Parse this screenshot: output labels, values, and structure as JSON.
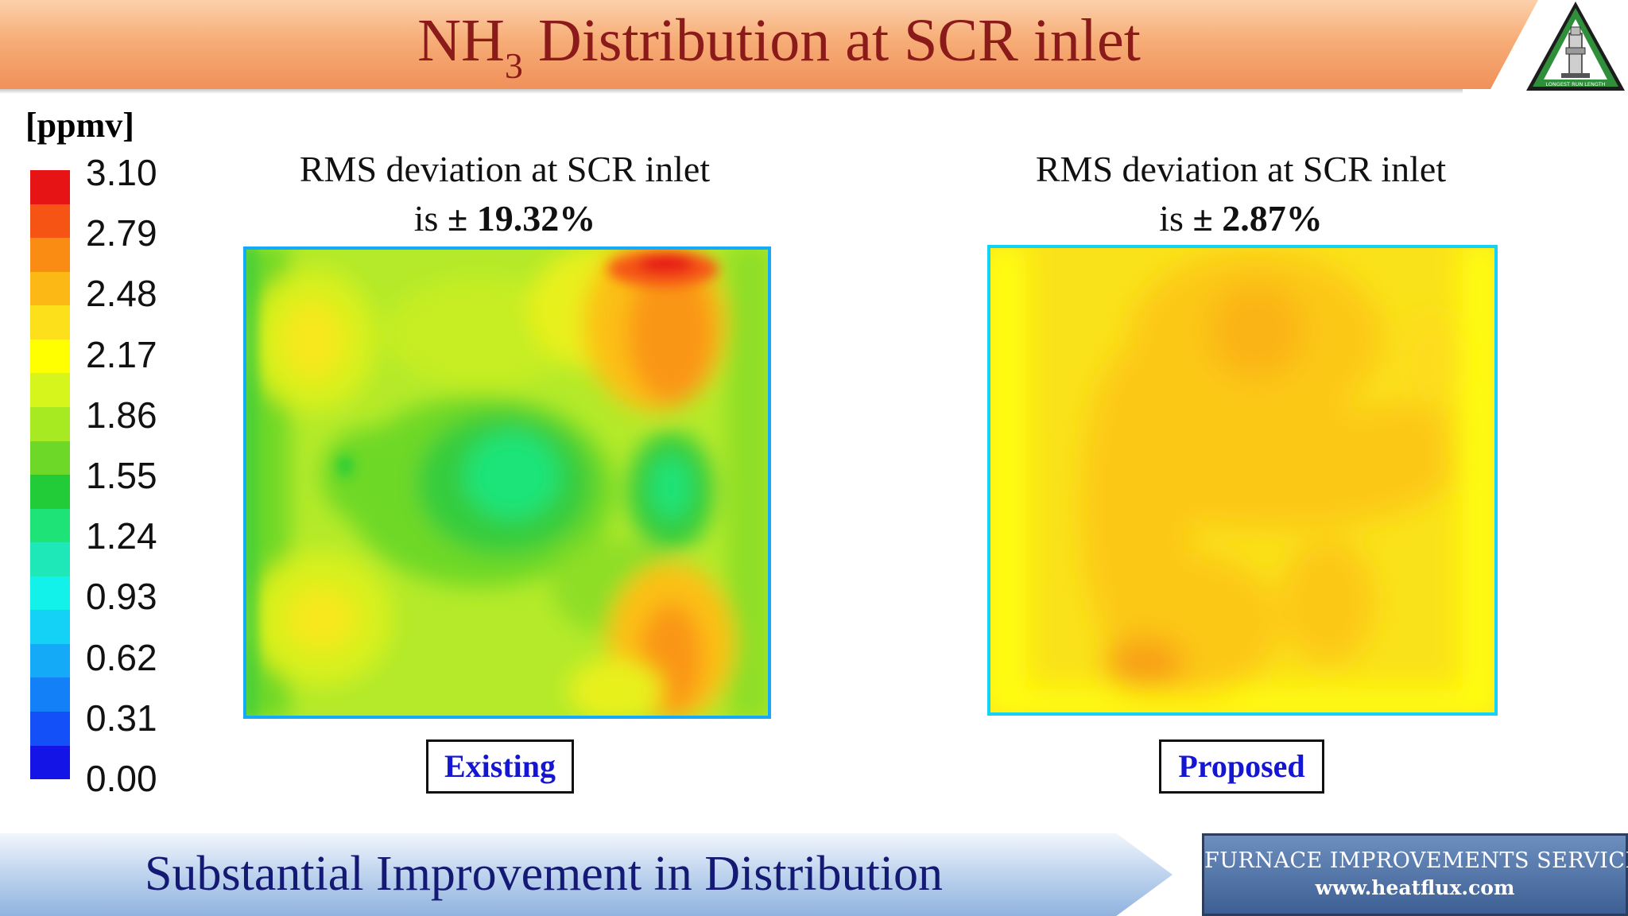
{
  "title": {
    "main": "NH",
    "subscript": "3",
    "rest": " Distribution at SCR inlet",
    "color": "#8b1a1a"
  },
  "legend": {
    "unit": "[ppmv]",
    "labels": [
      "3.10",
      "2.79",
      "2.48",
      "2.17",
      "1.86",
      "1.55",
      "1.24",
      "0.93",
      "0.62",
      "0.31",
      "0.00"
    ],
    "colors": [
      "#e61414",
      "#f55414",
      "#fa8c14",
      "#fcb814",
      "#fde01c",
      "#ffff00",
      "#d6f51c",
      "#a8ea22",
      "#6ed828",
      "#22cc38",
      "#1ee478",
      "#1ee8b8",
      "#12f2ea",
      "#14d2f6",
      "#14aaf8",
      "#1480f8",
      "#1450f8",
      "#1414e6"
    ]
  },
  "panels": [
    {
      "caption_line1": "RMS deviation at SCR inlet",
      "caption_prefix": "is ",
      "caption_value": "± 19.32%",
      "label": "Existing"
    },
    {
      "caption_line1": "RMS deviation at SCR inlet",
      "caption_prefix": "is ",
      "caption_value": "± 2.87%",
      "label": "Proposed"
    }
  ],
  "footer": {
    "headline": "Substantial Improvement in Distribution",
    "company": "FURNACE IMPROVEMENTS SERVICES",
    "url": "www.heatflux.com"
  },
  "logo": {
    "icon": "furnace-tower-triangle-logo",
    "ring_text": "LONGEST RUN LENGTH"
  }
}
